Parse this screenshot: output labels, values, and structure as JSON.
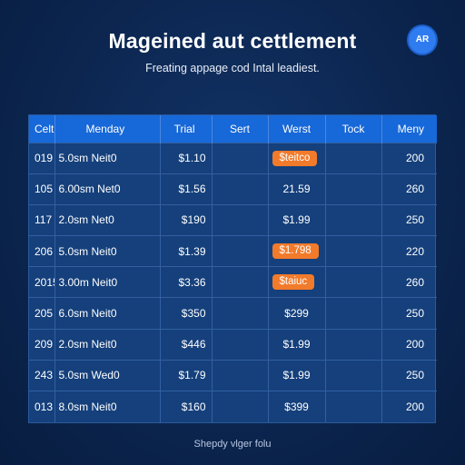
{
  "header": {
    "title": "Mageined aut cettlement",
    "subtitle": "Freating appage cod Intal leadiest.",
    "avatar_text": "AR"
  },
  "table": {
    "columns": [
      "Celt",
      "Menday",
      "Trial",
      "Sert",
      "Werst",
      "Tock",
      "Meny"
    ],
    "rows": [
      {
        "id": "019",
        "time": "5.0sm Neit0",
        "trial": "$1.10",
        "sert": "",
        "werst": "$teitco",
        "werst_badge": true,
        "tock": "",
        "meny": "200"
      },
      {
        "id": "105",
        "time": "6.00sm Net0",
        "trial": "$1.56",
        "sert": "",
        "werst": "21.59",
        "werst_badge": false,
        "tock": "",
        "meny": "260"
      },
      {
        "id": "117",
        "time": "2.0sm Net0",
        "trial": "$190",
        "sert": "",
        "werst": "$1.99",
        "werst_badge": false,
        "tock": "",
        "meny": "250"
      },
      {
        "id": "206",
        "time": "5.0sm Neit0",
        "trial": "$1.39",
        "sert": "",
        "werst": "$1.798",
        "werst_badge": true,
        "tock": "",
        "meny": "220"
      },
      {
        "id": "2015",
        "time": "3.00m Neit0",
        "trial": "$3.36",
        "sert": "",
        "werst": "$taiuc",
        "werst_badge": true,
        "tock": "",
        "meny": "260"
      },
      {
        "id": "205",
        "time": "6.0sm Neit0",
        "trial": "$350",
        "sert": "",
        "werst": "$299",
        "werst_badge": false,
        "tock": "",
        "meny": "250"
      },
      {
        "id": "209",
        "time": "2.0sm Neit0",
        "trial": "$446",
        "sert": "",
        "werst": "$1.99",
        "werst_badge": false,
        "tock": "",
        "meny": "200"
      },
      {
        "id": "243",
        "time": "5.0sm Wed0",
        "trial": "$1.79",
        "sert": "",
        "werst": "$1.99",
        "werst_badge": false,
        "tock": "",
        "meny": "250"
      },
      {
        "id": "013",
        "time": "8.0sm Neit0",
        "trial": "$160",
        "sert": "",
        "werst": "$399",
        "werst_badge": false,
        "tock": "",
        "meny": "200"
      }
    ]
  },
  "footer": {
    "text": "Shepdy vlger folu"
  },
  "colors": {
    "background": "#0c2650",
    "header_row": "#1768d8",
    "badge": "#f27a2b",
    "table_body": "#15407c"
  }
}
